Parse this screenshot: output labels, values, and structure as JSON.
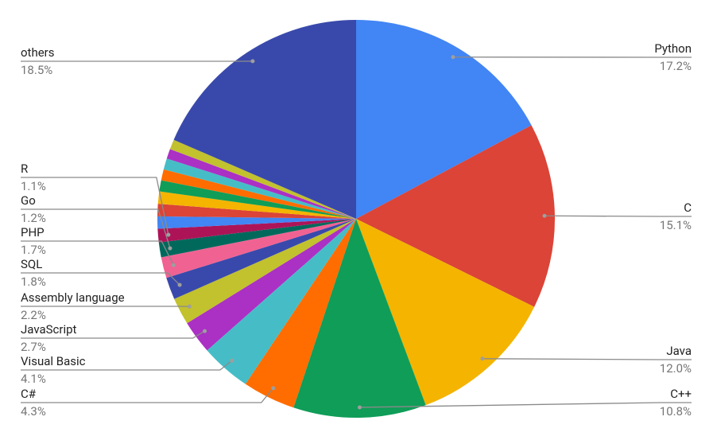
{
  "chart_data": {
    "type": "pie",
    "categories": [
      "Python",
      "C",
      "Java",
      "C++",
      "C#",
      "Visual Basic",
      "JavaScript",
      "Assembly language",
      "SQL",
      "PHP",
      "Go",
      "R",
      null,
      null,
      null,
      null,
      null,
      null,
      null,
      null,
      "others"
    ],
    "values": [
      17.2,
      15.1,
      12.0,
      10.8,
      4.3,
      4.1,
      2.7,
      2.2,
      1.8,
      1.7,
      1.2,
      1.1,
      1.0,
      1.0,
      1.0,
      0.9,
      0.9,
      0.9,
      0.8,
      0.8,
      18.5
    ],
    "value_labels": [
      "17.2%",
      "15.1%",
      "12.0%",
      "10.8%",
      "4.3%",
      "4.1%",
      "2.7%",
      "2.2%",
      "1.8%",
      "1.7%",
      "1.2%",
      "1.1%",
      null,
      null,
      null,
      null,
      null,
      null,
      null,
      null,
      "18.5%"
    ],
    "colors": [
      "#4285f4",
      "#db4437",
      "#f4b400",
      "#0f9d58",
      "#ff6d01",
      "#46bdc6",
      "#ab30c4",
      "#c2c12e",
      "#3949ab",
      "#f06292",
      "#00695c",
      "#ad1457",
      "#4285f4",
      "#db4437",
      "#f4b400",
      "#0f9d58",
      "#ff6d01",
      "#46bdc6",
      "#ab30c4",
      "#c2c12e",
      "#3949ab"
    ]
  }
}
